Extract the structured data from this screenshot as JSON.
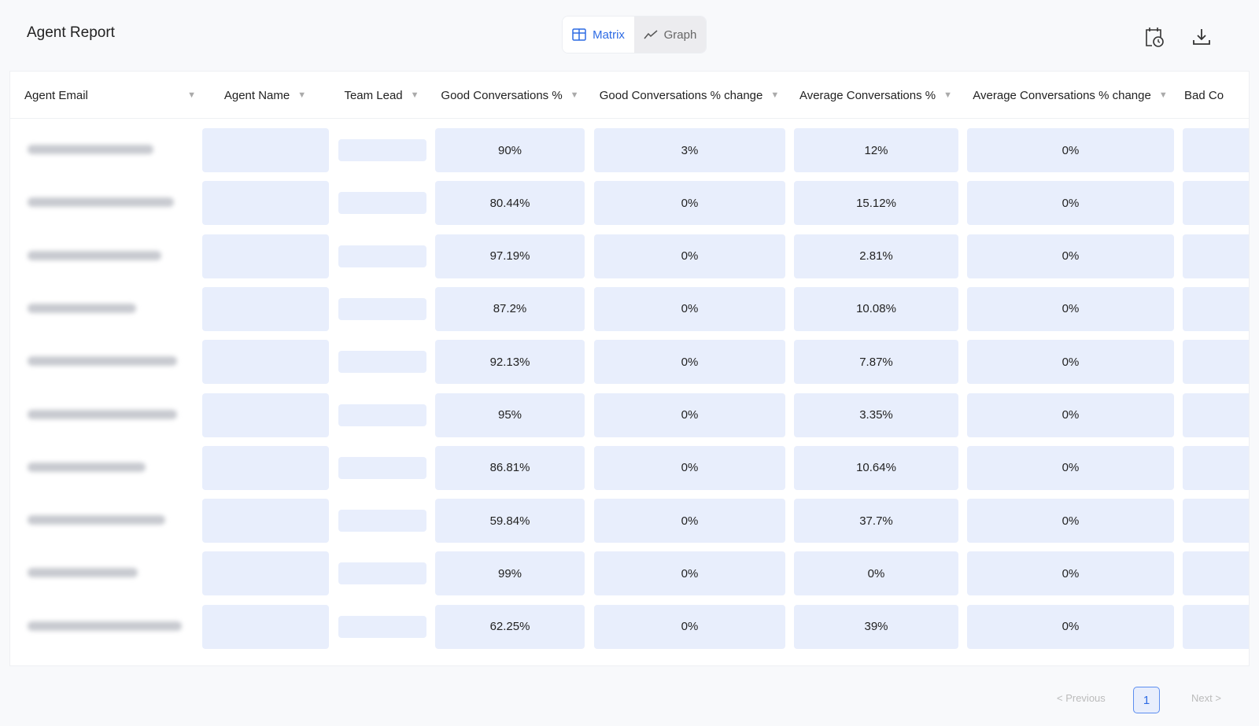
{
  "header": {
    "title": "Agent Report",
    "view_matrix": "Matrix",
    "view_graph": "Graph"
  },
  "columns": [
    "Agent Email",
    "Agent Name",
    "Team Lead",
    "Good Conversations %",
    "Good Conversations % change",
    "Average Conversations %",
    "Average Conversations % change",
    "Bad Co"
  ],
  "rows": [
    {
      "good": "90%",
      "good_change": "3%",
      "avg": "12%",
      "avg_change": "0%"
    },
    {
      "good": "80.44%",
      "good_change": "0%",
      "avg": "15.12%",
      "avg_change": "0%"
    },
    {
      "good": "97.19%",
      "good_change": "0%",
      "avg": "2.81%",
      "avg_change": "0%"
    },
    {
      "good": "87.2%",
      "good_change": "0%",
      "avg": "10.08%",
      "avg_change": "0%"
    },
    {
      "good": "92.13%",
      "good_change": "0%",
      "avg": "7.87%",
      "avg_change": "0%"
    },
    {
      "good": "95%",
      "good_change": "0%",
      "avg": "3.35%",
      "avg_change": "0%"
    },
    {
      "good": "86.81%",
      "good_change": "0%",
      "avg": "10.64%",
      "avg_change": "0%"
    },
    {
      "good": "59.84%",
      "good_change": "0%",
      "avg": "37.7%",
      "avg_change": "0%"
    },
    {
      "good": "99%",
      "good_change": "0%",
      "avg": "0%",
      "avg_change": "0%"
    },
    {
      "good": "62.25%",
      "good_change": "0%",
      "avg": "39%",
      "avg_change": "0%"
    }
  ],
  "pagination": {
    "previous": "< Previous",
    "page": "1",
    "next": "Next >"
  }
}
